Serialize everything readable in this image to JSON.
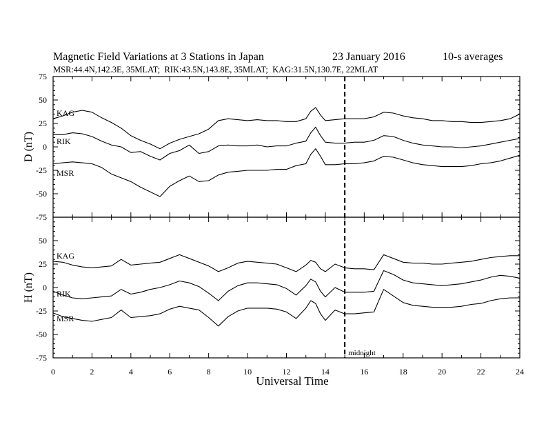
{
  "chart_data": {
    "type": "line",
    "title": "Magnetic Field Variations at 3 Stations in Japan",
    "date": "23 January 2016",
    "averaging": "10-s averages",
    "subtitle": "MSR:44.4N,142.3E, 35MLAT;  RIK:43.5N,143.8E, 35MLAT;  KAG:31.5N,130.7E, 22MLAT",
    "xlabel": "Universal Time",
    "xlim": [
      0,
      24
    ],
    "xticks": [
      0,
      2,
      4,
      6,
      8,
      10,
      12,
      14,
      16,
      18,
      20,
      22,
      24
    ],
    "grid": false,
    "line_color": "#000000",
    "marker": {
      "x": 15,
      "label": "midnight",
      "line_style": "dashed"
    },
    "x": [
      0,
      0.5,
      1,
      1.5,
      2,
      2.5,
      3,
      3.5,
      4,
      4.5,
      5,
      5.5,
      6,
      6.5,
      7,
      7.5,
      8,
      8.5,
      9,
      9.5,
      10,
      10.5,
      11,
      11.5,
      12,
      12.5,
      13,
      13.25,
      13.5,
      13.75,
      14,
      14.5,
      15,
      15.5,
      16,
      16.5,
      17,
      17.5,
      18,
      18.5,
      19,
      19.5,
      20,
      20.5,
      21,
      21.5,
      22,
      22.5,
      23,
      23.5,
      24
    ],
    "panels": [
      {
        "ylabel": "D (nT)",
        "ylim": [
          -75,
          75
        ],
        "yticks": [
          75,
          50,
          25,
          0,
          -25,
          -50,
          -75
        ],
        "series": [
          {
            "name": "KAG",
            "values": [
              30,
              33,
              37,
              39,
              37,
              31,
              26,
              20,
              12,
              7,
              3,
              -2,
              4,
              8,
              11,
              14,
              19,
              28,
              30,
              29,
              28,
              29,
              28,
              28,
              27,
              27,
              30,
              38,
              42,
              34,
              28,
              29,
              30,
              30,
              30,
              32,
              37,
              36,
              33,
              31,
              30,
              28,
              28,
              27,
              27,
              26,
              26,
              27,
              28,
              30,
              35
            ]
          },
          {
            "name": "RIK",
            "values": [
              13,
              13,
              15,
              14,
              11,
              6,
              2,
              0,
              -6,
              -5,
              -10,
              -14,
              -7,
              -4,
              2,
              -7,
              -5,
              1,
              2,
              1,
              1,
              2,
              0,
              1,
              1,
              4,
              6,
              15,
              21,
              12,
              5,
              4,
              4,
              5,
              5,
              7,
              12,
              11,
              7,
              4,
              2,
              1,
              0,
              0,
              -1,
              0,
              1,
              3,
              5,
              7,
              9
            ]
          },
          {
            "name": "MSR",
            "values": [
              -18,
              -17,
              -16,
              -17,
              -18,
              -22,
              -29,
              -33,
              -37,
              -43,
              -48,
              -53,
              -42,
              -36,
              -31,
              -37,
              -36,
              -30,
              -27,
              -26,
              -25,
              -25,
              -25,
              -24,
              -24,
              -20,
              -18,
              -8,
              -2,
              -10,
              -19,
              -19,
              -18,
              -18,
              -17,
              -15,
              -10,
              -11,
              -14,
              -17,
              -19,
              -20,
              -21,
              -21,
              -21,
              -20,
              -18,
              -17,
              -15,
              -12,
              -9
            ]
          }
        ]
      },
      {
        "ylabel": "H (nT)",
        "ylim": [
          -75,
          75
        ],
        "yticks": [
          50,
          25,
          0,
          -25,
          -50,
          -75
        ],
        "series": [
          {
            "name": "KAG",
            "values": [
              28,
              27,
              24,
              22,
              21,
              22,
              23,
              30,
              24,
              25,
              26,
              27,
              31,
              35,
              31,
              27,
              23,
              17,
              21,
              26,
              28,
              27,
              26,
              25,
              21,
              17,
              24,
              29,
              27,
              20,
              17,
              25,
              21,
              20,
              20,
              19,
              35,
              31,
              27,
              26,
              26,
              25,
              25,
              26,
              27,
              28,
              30,
              32,
              33,
              34,
              34
            ]
          },
          {
            "name": "RIK",
            "values": [
              -4,
              -8,
              -11,
              -12,
              -11,
              -10,
              -9,
              -2,
              -7,
              -5,
              -2,
              0,
              3,
              7,
              5,
              1,
              -6,
              -14,
              -4,
              2,
              5,
              5,
              4,
              3,
              -1,
              -8,
              2,
              9,
              6,
              -4,
              -10,
              0,
              -5,
              -5,
              -5,
              -4,
              18,
              14,
              8,
              5,
              4,
              3,
              2,
              3,
              4,
              6,
              8,
              11,
              13,
              12,
              10
            ]
          },
          {
            "name": "MSR",
            "values": [
              -27,
              -31,
              -33,
              -35,
              -36,
              -34,
              -32,
              -24,
              -32,
              -31,
              -30,
              -28,
              -23,
              -20,
              -22,
              -24,
              -32,
              -41,
              -31,
              -25,
              -22,
              -22,
              -22,
              -23,
              -26,
              -33,
              -22,
              -14,
              -17,
              -28,
              -35,
              -24,
              -28,
              -28,
              -27,
              -26,
              -2,
              -9,
              -16,
              -19,
              -20,
              -21,
              -21,
              -21,
              -20,
              -18,
              -17,
              -14,
              -12,
              -11,
              -11
            ]
          }
        ]
      }
    ]
  }
}
